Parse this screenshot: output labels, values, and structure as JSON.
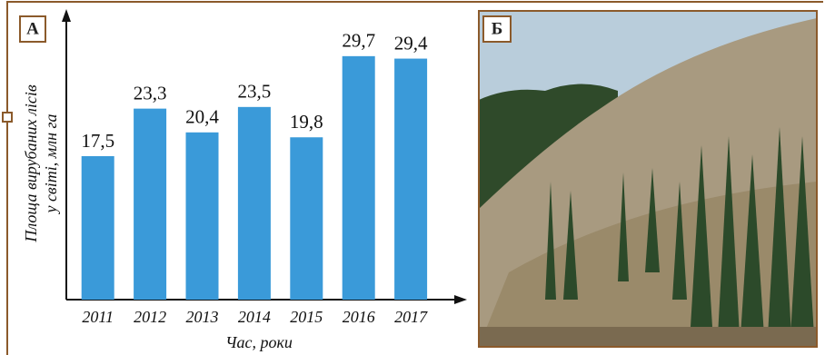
{
  "panel_labels": {
    "a": "А",
    "b": "Б"
  },
  "chart_data": {
    "type": "bar",
    "y_label": [
      "Площа вирубаних лісів",
      "у світі, млн га"
    ],
    "x_label": "Час, роки",
    "categories": [
      "2011",
      "2012",
      "2013",
      "2014",
      "2015",
      "2016",
      "2017"
    ],
    "values": [
      17.5,
      23.3,
      20.4,
      23.5,
      19.8,
      29.7,
      29.4
    ],
    "value_labels": [
      "17,5",
      "23,3",
      "20,4",
      "23,5",
      "19,8",
      "29,7",
      "29,4"
    ],
    "color": "#3a9ad9",
    "ylim": [
      0,
      35
    ]
  }
}
